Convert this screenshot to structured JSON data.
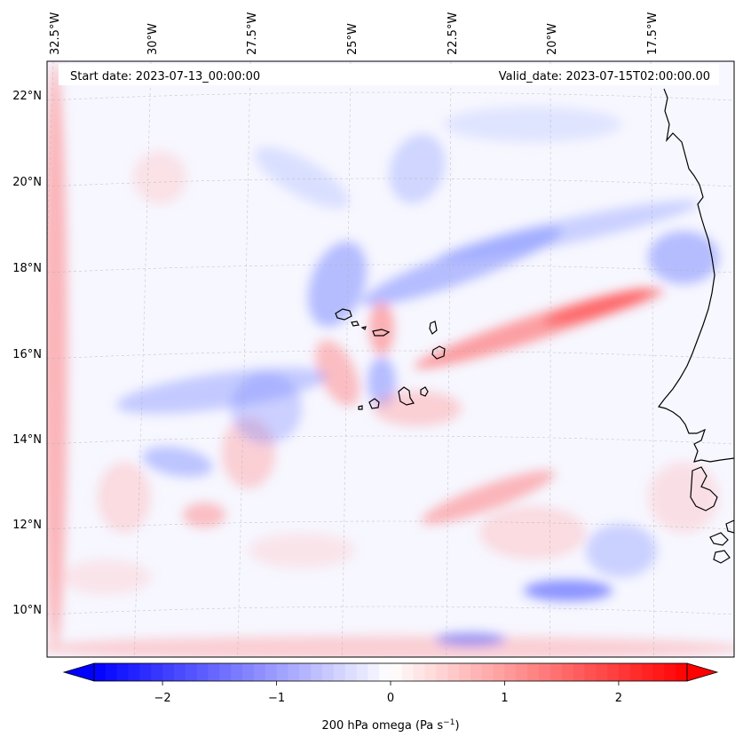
{
  "header": {
    "start_date": "Start date: 2023-07-13_00:00:00",
    "valid_date": "Valid_date: 2023-07-15T02:00:00.00"
  },
  "map": {
    "lon_labels": [
      "32.5°W",
      "30°W",
      "27.5°W",
      "25°W",
      "22.5°W",
      "20°W",
      "17.5°W"
    ],
    "lat_labels": [
      "22°N",
      "20°N",
      "18°N",
      "16°N",
      "14°N",
      "12°N",
      "10°N"
    ],
    "field": "200 hPa omega",
    "colormap": "bwr",
    "colors": {
      "negative": "#0000ff",
      "zero": "#ffffff",
      "positive": "#ff0000",
      "coastline": "#000000"
    }
  },
  "colorbar": {
    "label": "200 hPa omega (Pa s",
    "label_sup": "−1",
    "label_end": ")",
    "range": [
      -2.6,
      2.6
    ],
    "ticks": [
      {
        "value": -2,
        "label": "−2"
      },
      {
        "value": -1,
        "label": "−1"
      },
      {
        "value": 0,
        "label": "0"
      },
      {
        "value": 1,
        "label": "1"
      },
      {
        "value": 2,
        "label": "2"
      }
    ],
    "extend": "both"
  }
}
